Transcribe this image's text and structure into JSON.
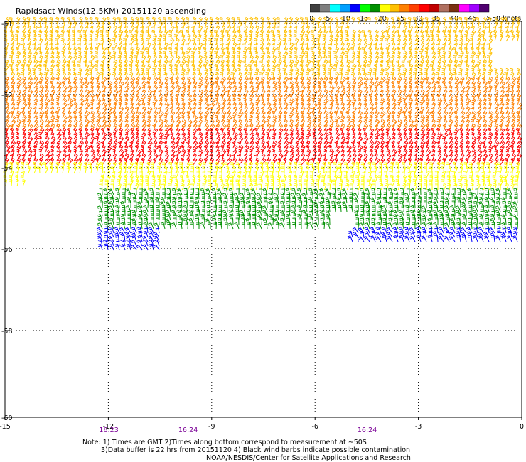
{
  "title": "Rapidsact Winds(12.5KM) 20151120 ascending",
  "legend": {
    "labels": [
      "0",
      "5",
      "10",
      "15",
      "20",
      "25",
      "30",
      "35",
      "40",
      "45",
      ">50 knots"
    ],
    "colors": [
      "#404040",
      "#7f7f7f",
      "#00ffff",
      "#00a0ff",
      "#0000ff",
      "#00ff00",
      "#009000",
      "#ffff00",
      "#ffc000",
      "#ff8000",
      "#ff4000",
      "#ff0000",
      "#c00000",
      "#b07060",
      "#7a3010",
      "#ff00ff",
      "#a000ff",
      "#500070"
    ]
  },
  "chart_data": {
    "type": "map",
    "xlabels": [
      "-15",
      "-12",
      "-9",
      "-6",
      "-3",
      "0"
    ],
    "ylabels": [
      "-51",
      "-52",
      "-54",
      "-56",
      "-58",
      "-60"
    ],
    "xlim": [
      -15,
      0
    ],
    "ylim": [
      -60,
      -51
    ],
    "grid": true,
    "times": [
      {
        "lon": -12,
        "label": "16:23"
      },
      {
        "lon": -9.7,
        "label": "16:24"
      },
      {
        "lon": -4.5,
        "label": "16:24"
      }
    ],
    "regions": [
      {
        "lat": [
          -51,
          -51.8
        ],
        "color": "#ffc000",
        "direction_deg": 70
      },
      {
        "lat": [
          -51.8,
          -53.0
        ],
        "color": "#ff8000",
        "direction_deg": 60
      },
      {
        "lat": [
          -53.0,
          -54.0
        ],
        "color": "#ff0000",
        "direction_deg": 60
      },
      {
        "lat": [
          -54.0,
          -54.6
        ],
        "color": "#ffff00",
        "direction_deg": 80
      },
      {
        "lat": [
          -54.6,
          -55.6
        ],
        "color": "#009000",
        "direction_deg": 100
      },
      {
        "lat": [
          -55.6,
          -56.0
        ],
        "color": "#0000ff",
        "direction_deg": 110
      }
    ]
  },
  "notes": [
    "Note: 1) Times are GMT 2)Times along bottom correspond to measurement at ~50S",
    "3)Data buffer is 22 hrs from 20151120 4) Black wind barbs indicate possible contamination",
    "NOAA/NESDIS/Center for Satellite Applications and Research"
  ]
}
